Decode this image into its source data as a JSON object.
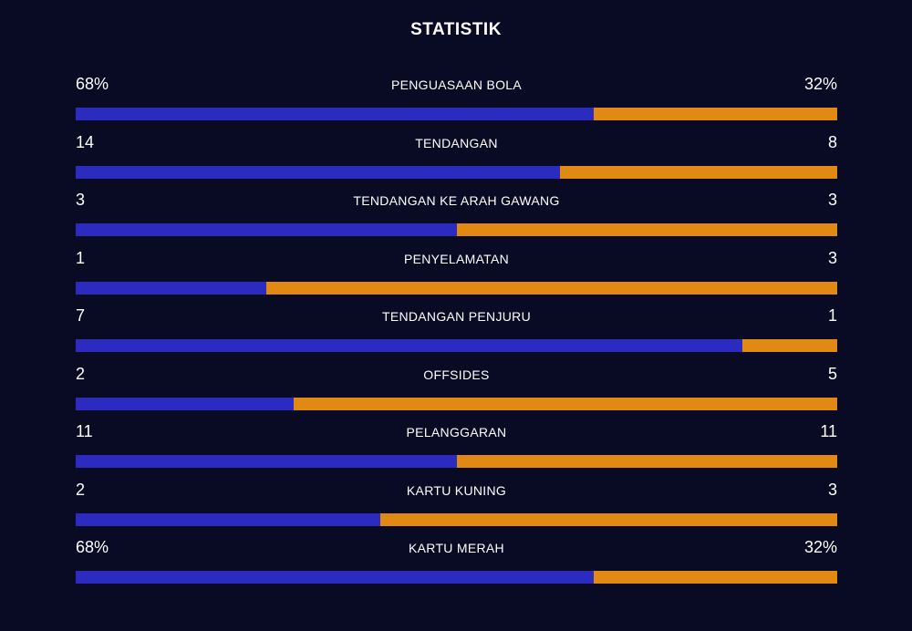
{
  "title": "STATISTIK",
  "colors": {
    "background": "#090a24",
    "left_team": "#2b2cbf",
    "right_team": "#e08a13"
  },
  "stats": [
    {
      "label": "PENGUASAAN BOLA",
      "left": "68%",
      "right": "32%",
      "left_share": 0.68
    },
    {
      "label": "TENDANGAN",
      "left": "14",
      "right": "8",
      "left_share": 0.636
    },
    {
      "label": "TENDANGAN KE ARAH GAWANG",
      "left": "3",
      "right": "3",
      "left_share": 0.5
    },
    {
      "label": "PENYELAMATAN",
      "left": "1",
      "right": "3",
      "left_share": 0.25
    },
    {
      "label": "TENDANGAN PENJURU",
      "left": "7",
      "right": "1",
      "left_share": 0.875
    },
    {
      "label": "OFFSIDES",
      "left": "2",
      "right": "5",
      "left_share": 0.286
    },
    {
      "label": "PELANGGARAN",
      "left": "11",
      "right": "11",
      "left_share": 0.5
    },
    {
      "label": "KARTU KUNING",
      "left": "2",
      "right": "3",
      "left_share": 0.4
    },
    {
      "label": "KARTU MERAH",
      "left": "68%",
      "right": "32%",
      "left_share": 0.68
    }
  ]
}
